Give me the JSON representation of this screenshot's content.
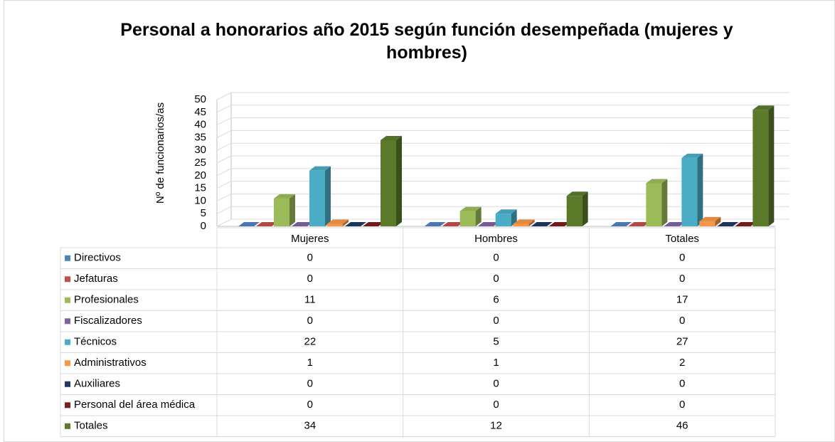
{
  "chart_data": {
    "type": "bar",
    "title": "Personal a honorarios año 2015 según función desempeñada (mujeres y hombres)",
    "y_label": "Nº de funcionarios/as",
    "categories": [
      "Mujeres",
      "Hombres",
      "Totales"
    ],
    "ylim": [
      0,
      50
    ],
    "yticks": [
      0,
      5,
      10,
      15,
      20,
      25,
      30,
      35,
      40,
      45,
      50
    ],
    "grid": true,
    "series": [
      {
        "name": "Directivos",
        "color": "#4f81bd",
        "values": [
          0,
          0,
          0
        ]
      },
      {
        "name": "Jefaturas",
        "color": "#c0504d",
        "values": [
          0,
          0,
          0
        ]
      },
      {
        "name": "Profesionales",
        "color": "#9bbb59",
        "values": [
          11,
          6,
          17
        ]
      },
      {
        "name": "Fiscalizadores",
        "color": "#8064a2",
        "values": [
          0,
          0,
          0
        ]
      },
      {
        "name": "Técnicos",
        "color": "#4bacc6",
        "values": [
          22,
          5,
          27
        ]
      },
      {
        "name": "Administrativos",
        "color": "#f79646",
        "values": [
          1,
          1,
          2
        ]
      },
      {
        "name": "Auxiliares",
        "color": "#1f3864",
        "values": [
          0,
          0,
          0
        ]
      },
      {
        "name": "Personal del área médica",
        "color": "#7b1e1e",
        "values": [
          0,
          0,
          0
        ]
      },
      {
        "name": "Totales",
        "color": "#5a7a2a",
        "values": [
          34,
          12,
          46
        ]
      }
    ]
  }
}
